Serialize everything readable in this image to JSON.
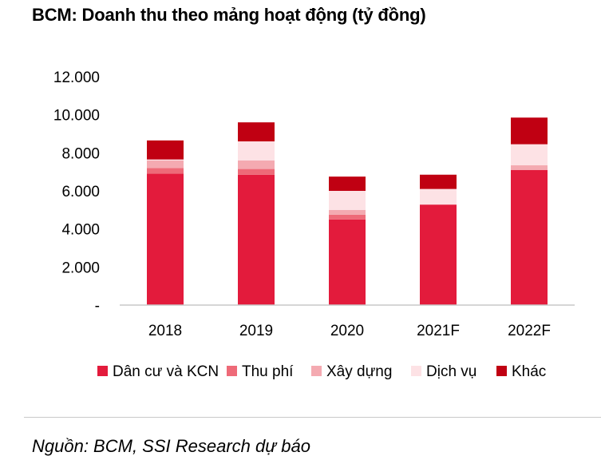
{
  "title": "BCM: Doanh thu theo mảng hoạt động (tỷ đồng)",
  "source": "Nguồn: BCM, SSI Research dự báo",
  "chart_data": {
    "type": "bar",
    "stacked": true,
    "categories": [
      "2018",
      "2019",
      "2020",
      "2021F",
      "2022F"
    ],
    "series": [
      {
        "name": "Dân cư và KCN",
        "color": "#e31b3c",
        "values": [
          6900,
          6850,
          4500,
          5280,
          7100
        ]
      },
      {
        "name": "Thu phí",
        "color": "#ee6a78",
        "values": [
          300,
          300,
          250,
          0,
          0
        ]
      },
      {
        "name": "Xây dựng",
        "color": "#f4aab1",
        "values": [
          400,
          450,
          250,
          0,
          250
        ]
      },
      {
        "name": "Dịch vụ",
        "color": "#fde2e5",
        "values": [
          50,
          1000,
          1000,
          820,
          1100
        ]
      },
      {
        "name": "Khác",
        "color": "#c00012",
        "values": [
          1000,
          1000,
          750,
          750,
          1400
        ]
      }
    ],
    "y_ticks": [
      "-",
      "2.000",
      "4.000",
      "6.000",
      "8.000",
      "10.000",
      "12.000"
    ],
    "ylim": [
      0,
      12000
    ],
    "grid": false,
    "legend_position": "bottom"
  }
}
